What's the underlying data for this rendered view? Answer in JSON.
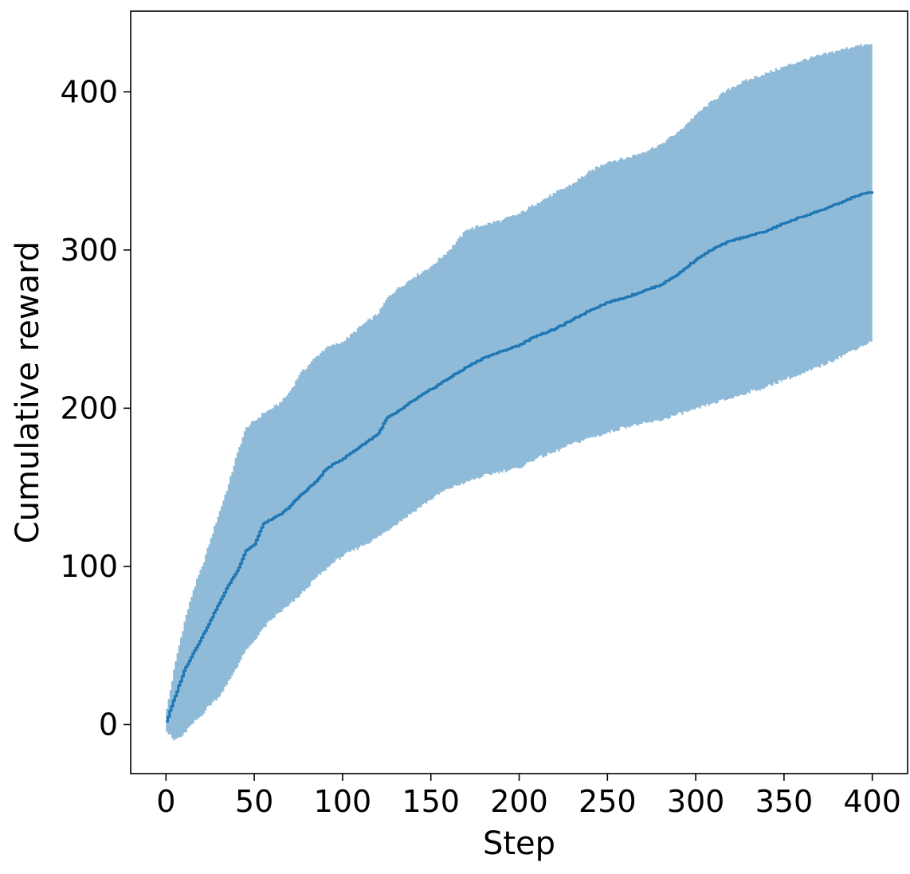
{
  "chart_data": {
    "type": "line",
    "title": "",
    "xlabel": "Step",
    "ylabel": "Cumulative reward",
    "xlim": [
      -20,
      420
    ],
    "ylim": [
      -31,
      451
    ],
    "xticks": [
      0,
      50,
      100,
      150,
      200,
      250,
      300,
      350,
      400
    ],
    "yticks": [
      0,
      100,
      200,
      300,
      400
    ],
    "grid": false,
    "legend": "none",
    "colors": {
      "line": "#1f77b4",
      "band": "#1f77b4",
      "band_opacity": 0.5
    },
    "series": [
      {
        "kind": "mean",
        "x": [
          0,
          5,
          10,
          15,
          20,
          25,
          30,
          35,
          40,
          45,
          50,
          55,
          60,
          65,
          70,
          75,
          80,
          85,
          90,
          95,
          100,
          110,
          120,
          125,
          130,
          140,
          150,
          160,
          170,
          180,
          190,
          200,
          210,
          220,
          230,
          240,
          250,
          260,
          270,
          280,
          290,
          300,
          310,
          320,
          330,
          340,
          350,
          360,
          370,
          380,
          390,
          400
        ],
        "y": [
          2,
          18,
          34,
          45,
          55,
          66,
          77,
          88,
          97,
          110,
          114,
          127,
          130,
          133,
          138,
          144,
          149,
          154,
          161,
          165,
          168,
          176,
          184,
          194,
          197,
          205,
          212,
          219,
          226,
          232,
          236,
          240,
          246,
          250,
          256,
          262,
          267,
          270,
          274,
          278,
          285,
          294,
          301,
          306,
          309,
          312,
          317,
          321,
          325,
          329,
          334,
          337
        ]
      },
      {
        "kind": "upper",
        "x": [
          0,
          5,
          10,
          15,
          20,
          25,
          30,
          35,
          40,
          45,
          50,
          55,
          60,
          65,
          70,
          75,
          80,
          85,
          90,
          95,
          100,
          110,
          120,
          125,
          130,
          140,
          150,
          160,
          170,
          180,
          190,
          200,
          210,
          220,
          230,
          240,
          250,
          260,
          270,
          280,
          290,
          300,
          310,
          320,
          330,
          340,
          350,
          360,
          370,
          380,
          390,
          400
        ],
        "y": [
          10,
          40,
          65,
          85,
          100,
          118,
          135,
          152,
          172,
          188,
          192,
          197,
          200,
          204,
          211,
          221,
          227,
          233,
          238,
          240,
          242,
          252,
          260,
          270,
          275,
          283,
          290,
          300,
          313,
          316,
          319,
          323,
          330,
          336,
          342,
          350,
          356,
          358,
          362,
          367,
          375,
          386,
          395,
          403,
          408,
          412,
          416,
          420,
          423,
          426,
          429,
          430
        ]
      },
      {
        "kind": "lower",
        "x": [
          0,
          5,
          10,
          15,
          20,
          25,
          30,
          35,
          40,
          45,
          50,
          55,
          60,
          65,
          70,
          75,
          80,
          85,
          90,
          95,
          100,
          110,
          120,
          125,
          130,
          140,
          150,
          160,
          170,
          180,
          190,
          200,
          210,
          220,
          230,
          240,
          250,
          260,
          270,
          280,
          290,
          300,
          310,
          320,
          330,
          340,
          350,
          360,
          370,
          380,
          390,
          400
        ],
        "y": [
          -3,
          -10,
          -7,
          0,
          5,
          12,
          17,
          25,
          35,
          45,
          52,
          60,
          66,
          71,
          75,
          80,
          86,
          92,
          97,
          102,
          106,
          112,
          118,
          122,
          126,
          134,
          142,
          149,
          153,
          157,
          160,
          162,
          168,
          172,
          177,
          181,
          184,
          188,
          190,
          192,
          196,
          199,
          203,
          206,
          210,
          213,
          218,
          221,
          226,
          231,
          237,
          242
        ]
      }
    ]
  }
}
